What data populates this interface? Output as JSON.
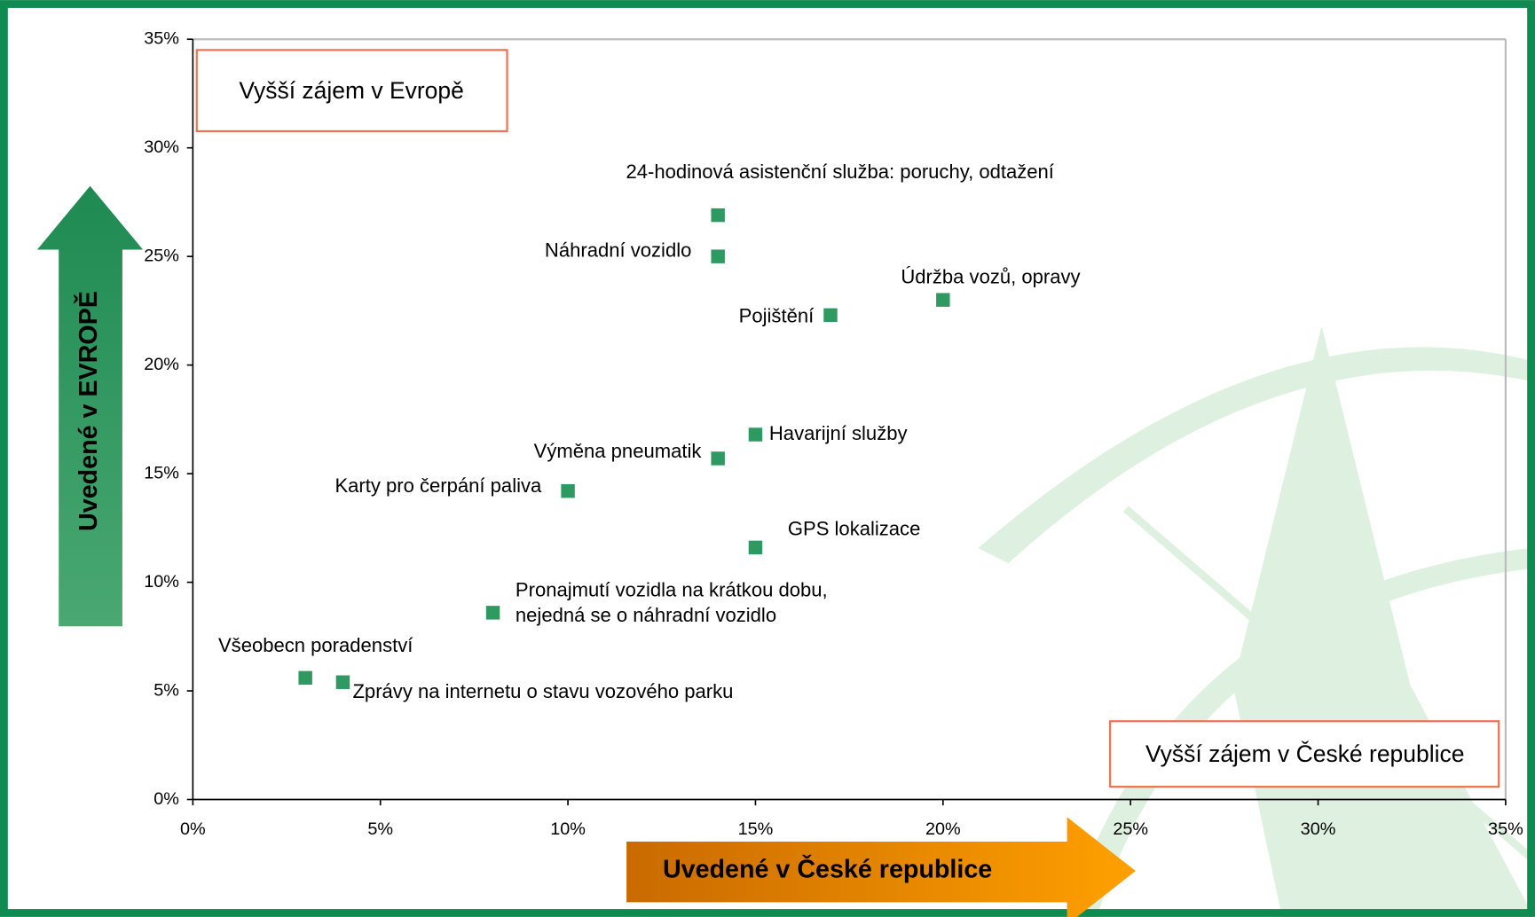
{
  "chart_data": {
    "type": "scatter",
    "xlabel": "Uvedené v České republice",
    "ylabel": "Uvedené v EVROPĚ",
    "annotations": [
      "Vyšší zájem v Evropě",
      "Vyšší zájem v České republice"
    ],
    "xlim": [
      0,
      35
    ],
    "ylim": [
      0,
      35
    ],
    "xticks": [
      {
        "value": 0,
        "label": "0%"
      },
      {
        "value": 5,
        "label": "5%"
      },
      {
        "value": 10,
        "label": "10%"
      },
      {
        "value": 15,
        "label": "15%"
      },
      {
        "value": 20,
        "label": "20%"
      },
      {
        "value": 25,
        "label": "25%"
      },
      {
        "value": 30,
        "label": "30%"
      },
      {
        "value": 35,
        "label": "35%"
      }
    ],
    "yticks": [
      {
        "value": 0,
        "label": "0%"
      },
      {
        "value": 5,
        "label": "5%"
      },
      {
        "value": 10,
        "label": "10%"
      },
      {
        "value": 15,
        "label": "15%"
      },
      {
        "value": 20,
        "label": "20%"
      },
      {
        "value": 25,
        "label": "25%"
      },
      {
        "value": 30,
        "label": "30%"
      },
      {
        "value": 35,
        "label": "35%"
      }
    ],
    "color": "#2e9a62",
    "points": [
      {
        "label": [
          "24-hodinová asistenční služba: poruchy, odtažení"
        ],
        "x": 14,
        "y": 26.9
      },
      {
        "label": [
          "Náhradní vozidlo"
        ],
        "x": 14,
        "y": 25
      },
      {
        "label": [
          "Pojištění"
        ],
        "x": 17,
        "y": 22.3
      },
      {
        "label": [
          "Údržba vozů, opravy"
        ],
        "x": 20,
        "y": 23
      },
      {
        "label": [
          "Havarijní služby"
        ],
        "x": 15,
        "y": 16.8
      },
      {
        "label": [
          "Výměna pneumatik"
        ],
        "x": 14,
        "y": 15.7
      },
      {
        "label": [
          "Karty pro čerpání paliva"
        ],
        "x": 10,
        "y": 14.2
      },
      {
        "label": [
          "GPS lokalizace"
        ],
        "x": 15,
        "y": 11.6
      },
      {
        "label": [
          "Pronajmutí vozidla na krátkou dobu,",
          "nejedná se o náhradní vozidlo"
        ],
        "x": 8,
        "y": 8.6
      },
      {
        "label": [
          "Všeobecn poradenství"
        ],
        "x": 3,
        "y": 5.6
      },
      {
        "label": [
          "Zprávy na internetu o stavu vozového parku"
        ],
        "x": 4,
        "y": 5.4
      }
    ]
  }
}
